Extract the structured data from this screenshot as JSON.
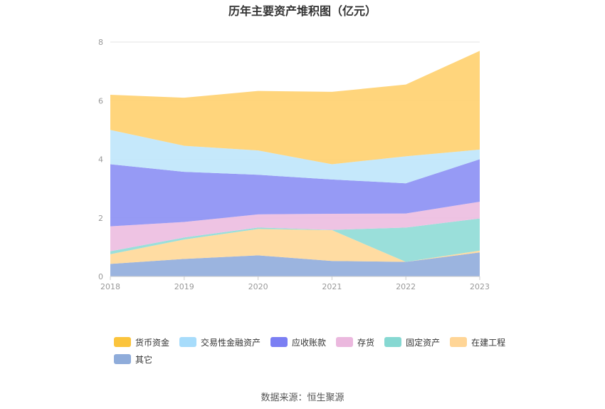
{
  "chart_data": {
    "type": "area",
    "stacked": true,
    "title": "历年主要资产堆积图（亿元）",
    "categories": [
      "2018",
      "2019",
      "2020",
      "2021",
      "2022",
      "2023"
    ],
    "ylim": [
      0,
      8
    ],
    "yticks": [
      0,
      2,
      4,
      6,
      8
    ],
    "grid": true,
    "legend_position": "bottom",
    "series": [
      {
        "name": "其它",
        "color": "#90acdb",
        "values": [
          0.43,
          0.6,
          0.72,
          0.53,
          0.5,
          0.82
        ]
      },
      {
        "name": "在建工程",
        "color": "#ffd898",
        "values": [
          0.33,
          0.66,
          0.9,
          1.05,
          0.0,
          0.06
        ]
      },
      {
        "name": "固定资产",
        "color": "#8fdcd6",
        "values": [
          0.1,
          0.07,
          0.05,
          0.01,
          1.17,
          1.1
        ]
      },
      {
        "name": "存货",
        "color": "#ecbde0",
        "values": [
          0.85,
          0.53,
          0.45,
          0.55,
          0.48,
          0.57
        ]
      },
      {
        "name": "应收账款",
        "color": "#8b8ff4",
        "values": [
          2.12,
          1.71,
          1.35,
          1.17,
          1.03,
          1.45
        ]
      },
      {
        "name": "交易性金融资产",
        "color": "#bfe6fb",
        "values": [
          1.17,
          0.89,
          0.83,
          0.52,
          0.92,
          0.33
        ]
      },
      {
        "name": "货币资金",
        "color": "#ffd06e",
        "values": [
          1.2,
          1.64,
          2.03,
          2.47,
          2.45,
          3.37
        ]
      }
    ]
  },
  "legend": [
    {
      "label": "货币资金",
      "color": "#fbc43c"
    },
    {
      "label": "交易性金融资产",
      "color": "#a7dcfb"
    },
    {
      "label": "应收账款",
      "color": "#7b7ff3"
    },
    {
      "label": "存货",
      "color": "#ebb8de"
    },
    {
      "label": "固定资产",
      "color": "#86d8d2"
    },
    {
      "label": "在建工程",
      "color": "#ffd596"
    },
    {
      "label": "其它",
      "color": "#8facda"
    }
  ],
  "source": "数据来源：恒生聚源"
}
